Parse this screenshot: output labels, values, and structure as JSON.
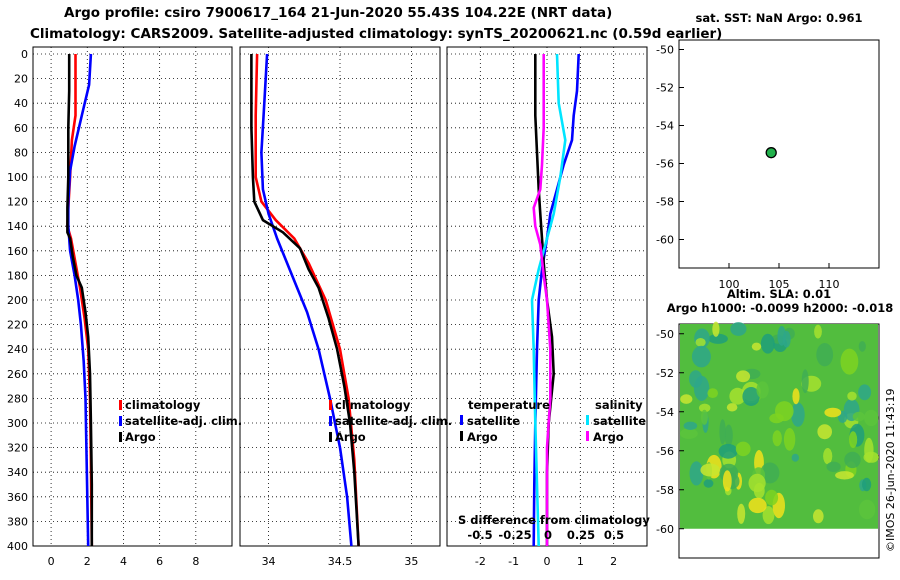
{
  "title_line1": "Argo profile: csiro 7900617_164 21-Jun-2020 55.43S 104.22E (NRT data)",
  "title_line2": "Climatology: CARS2009. Satellite-adjusted climatology: synTS_20200621.nc (0.59d earlier)",
  "sst_title": "sat. SST: NaN Argo: 0.961",
  "sla_title1": "Altim. SLA: 0.01",
  "sla_title2": "Argo h1000: -0.0099 h2000: -0.018",
  "credit": "©IMOS 26-Jun-2020 11:43:19",
  "colors": {
    "climatology": "#ff0000",
    "satellite": "#0000ff",
    "argo": "#000000",
    "sal_sat": "#00e5ff",
    "sal_argo": "#ff00ff"
  },
  "chart_data": [
    {
      "type": "line",
      "name": "temperature",
      "xlim": [
        -1,
        10
      ],
      "ylim": [
        400,
        0
      ],
      "x_ticks": [
        0,
        2,
        4,
        6,
        8
      ],
      "y_ticks": [
        0,
        20,
        40,
        60,
        80,
        100,
        120,
        140,
        160,
        180,
        200,
        220,
        240,
        260,
        280,
        300,
        320,
        340,
        360,
        380,
        400
      ],
      "grid": true,
      "legend": [
        "climatology",
        "satellite-adj. clim.",
        "Argo"
      ],
      "series": [
        {
          "name": "climatology",
          "color": "#ff0000",
          "points": [
            [
              1.35,
              0
            ],
            [
              1.35,
              50
            ],
            [
              1.15,
              70
            ],
            [
              1.05,
              100
            ],
            [
              0.95,
              125
            ],
            [
              0.9,
              140
            ],
            [
              1.1,
              150
            ],
            [
              1.35,
              170
            ],
            [
              1.6,
              190
            ],
            [
              1.85,
              215
            ],
            [
              2.05,
              240
            ],
            [
              2.15,
              280
            ],
            [
              2.2,
              330
            ],
            [
              2.25,
              400
            ]
          ]
        },
        {
          "name": "satellite-adj. clim.",
          "color": "#0000ff",
          "points": [
            [
              2.2,
              0
            ],
            [
              2.1,
              25
            ],
            [
              1.7,
              50
            ],
            [
              1.3,
              75
            ],
            [
              1.05,
              95
            ],
            [
              0.95,
              120
            ],
            [
              0.95,
              140
            ],
            [
              1.05,
              160
            ],
            [
              1.3,
              180
            ],
            [
              1.5,
              200
            ],
            [
              1.65,
              220
            ],
            [
              1.8,
              250
            ],
            [
              1.9,
              280
            ],
            [
              1.95,
              320
            ],
            [
              2.0,
              360
            ],
            [
              2.05,
              400
            ]
          ]
        },
        {
          "name": "Argo",
          "color": "#000000",
          "points": [
            [
              1.0,
              0
            ],
            [
              1.0,
              30
            ],
            [
              0.95,
              60
            ],
            [
              0.95,
              100
            ],
            [
              0.9,
              125
            ],
            [
              0.9,
              145
            ],
            [
              1.05,
              150
            ],
            [
              1.2,
              165
            ],
            [
              1.4,
              180
            ],
            [
              1.7,
              190
            ],
            [
              1.9,
              210
            ],
            [
              2.05,
              230
            ],
            [
              2.15,
              260
            ],
            [
              2.2,
              300
            ],
            [
              2.25,
              350
            ],
            [
              2.25,
              400
            ]
          ]
        }
      ]
    },
    {
      "type": "line",
      "name": "salinity",
      "xlim": [
        33.8,
        35.2
      ],
      "ylim": [
        400,
        0
      ],
      "x_ticks": [
        34,
        34.5,
        35
      ],
      "x_tick_labels": [
        "34",
        "34.5",
        "35"
      ],
      "y_ticks": [
        0,
        20,
        40,
        60,
        80,
        100,
        120,
        140,
        160,
        180,
        200,
        220,
        240,
        260,
        280,
        300,
        320,
        340,
        360,
        380,
        400
      ],
      "grid": true,
      "legend": [
        "climatology",
        "satellite-adj. clim.",
        "Argo"
      ],
      "series": [
        {
          "name": "climatology",
          "color": "#ff0000",
          "points": [
            [
              33.92,
              0
            ],
            [
              33.91,
              50
            ],
            [
              33.91,
              100
            ],
            [
              33.95,
              120
            ],
            [
              34.05,
              135
            ],
            [
              34.18,
              150
            ],
            [
              34.28,
              170
            ],
            [
              34.4,
              200
            ],
            [
              34.5,
              240
            ],
            [
              34.56,
              280
            ],
            [
              34.6,
              330
            ],
            [
              34.63,
              400
            ]
          ]
        },
        {
          "name": "satellite-adj. clim.",
          "color": "#0000ff",
          "points": [
            [
              33.99,
              0
            ],
            [
              33.97,
              40
            ],
            [
              33.95,
              80
            ],
            [
              33.96,
              110
            ],
            [
              34.0,
              130
            ],
            [
              34.06,
              150
            ],
            [
              34.13,
              170
            ],
            [
              34.2,
              190
            ],
            [
              34.27,
              210
            ],
            [
              34.35,
              240
            ],
            [
              34.43,
              280
            ],
            [
              34.5,
              320
            ],
            [
              34.55,
              360
            ],
            [
              34.58,
              400
            ]
          ]
        },
        {
          "name": "Argo",
          "color": "#000000",
          "points": [
            [
              33.88,
              0
            ],
            [
              33.88,
              60
            ],
            [
              33.89,
              100
            ],
            [
              33.9,
              120
            ],
            [
              33.96,
              135
            ],
            [
              34.1,
              145
            ],
            [
              34.22,
              158
            ],
            [
              34.28,
              175
            ],
            [
              34.35,
              190
            ],
            [
              34.42,
              215
            ],
            [
              34.48,
              240
            ],
            [
              34.53,
              270
            ],
            [
              34.57,
              300
            ],
            [
              34.6,
              340
            ],
            [
              34.63,
              400
            ]
          ]
        }
      ]
    },
    {
      "type": "line",
      "name": "difference from climatology",
      "xlim": [
        -3,
        3
      ],
      "ylim": [
        400,
        0
      ],
      "x_ticks": [
        -2,
        -1,
        0,
        1,
        2
      ],
      "x_ticks_secondary": [
        -0.5,
        -0.25,
        0,
        0.25,
        0.5
      ],
      "secondary_label": "S difference from climatology",
      "y_ticks": [
        0,
        20,
        40,
        60,
        80,
        100,
        120,
        140,
        160,
        180,
        200,
        220,
        240,
        260,
        280,
        300,
        320,
        340,
        360,
        380,
        400
      ],
      "grid": true,
      "legend_temperature": {
        "title": "temperature",
        "entries": [
          "satellite",
          "Argo"
        ]
      },
      "legend_salinity": {
        "title": "salinity",
        "entries": [
          "satellite",
          "Argo"
        ]
      },
      "series": [
        {
          "name": "temperature satellite",
          "color": "#0000ff",
          "points": [
            [
              0.95,
              0
            ],
            [
              0.9,
              30
            ],
            [
              0.8,
              50
            ],
            [
              0.75,
              70
            ],
            [
              0.5,
              90
            ],
            [
              0.3,
              110
            ],
            [
              0.1,
              130
            ],
            [
              0.0,
              150
            ],
            [
              -0.15,
              175
            ],
            [
              -0.25,
              200
            ],
            [
              -0.3,
              240
            ],
            [
              -0.35,
              300
            ],
            [
              -0.38,
              350
            ],
            [
              -0.4,
              400
            ]
          ]
        },
        {
          "name": "temperature Argo",
          "color": "#000000",
          "points": [
            [
              -0.35,
              0
            ],
            [
              -0.35,
              50
            ],
            [
              -0.3,
              80
            ],
            [
              -0.25,
              110
            ],
            [
              -0.2,
              130
            ],
            [
              -0.15,
              150
            ],
            [
              -0.1,
              170
            ],
            [
              0.0,
              200
            ],
            [
              0.15,
              230
            ],
            [
              0.2,
              260
            ],
            [
              0.05,
              300
            ],
            [
              0.0,
              340
            ],
            [
              0.0,
              400
            ]
          ]
        },
        {
          "name": "salinity satellite",
          "color": "#00e5ff",
          "points": [
            [
              0.3,
              0
            ],
            [
              0.35,
              40
            ],
            [
              0.55,
              70
            ],
            [
              0.4,
              100
            ],
            [
              0.2,
              130
            ],
            [
              0.0,
              150
            ],
            [
              -0.25,
              175
            ],
            [
              -0.45,
              200
            ],
            [
              -0.4,
              240
            ],
            [
              -0.35,
              300
            ],
            [
              -0.3,
              350
            ],
            [
              -0.25,
              400
            ]
          ]
        },
        {
          "name": "salinity Argo",
          "color": "#ff00ff",
          "points": [
            [
              -0.1,
              0
            ],
            [
              -0.1,
              60
            ],
            [
              -0.15,
              90
            ],
            [
              -0.2,
              110
            ],
            [
              -0.4,
              125
            ],
            [
              -0.35,
              140
            ],
            [
              -0.2,
              155
            ],
            [
              -0.1,
              180
            ],
            [
              0.0,
              200
            ],
            [
              0.1,
              240
            ],
            [
              0.1,
              280
            ],
            [
              0.0,
              320
            ],
            [
              0.0,
              360
            ],
            [
              0.0,
              400
            ]
          ]
        }
      ]
    },
    {
      "type": "scatter",
      "name": "SST map",
      "xlim": [
        95,
        115
      ],
      "ylim": [
        -61.5,
        -49.5
      ],
      "x_ticks": [
        100,
        105,
        110
      ],
      "y_ticks": [
        -50,
        -52,
        -54,
        -56,
        -58,
        -60
      ],
      "points": [
        [
          104.22,
          -55.43
        ]
      ]
    },
    {
      "type": "heatmap",
      "name": "SLA map",
      "ylim": [
        -61.5,
        -49.5
      ],
      "y_ticks": [
        -50,
        -52,
        -54,
        -56,
        -58,
        -60
      ],
      "data_lat_range": [
        -60,
        -49.5
      ]
    }
  ]
}
